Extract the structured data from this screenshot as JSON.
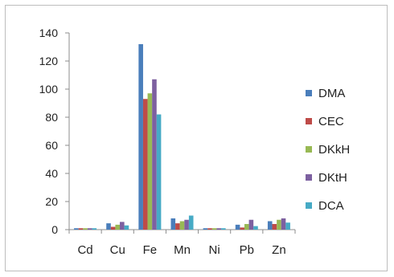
{
  "chart_data": {
    "type": "bar",
    "categories": [
      "Cd",
      "Cu",
      "Fe",
      "Mn",
      "Ni",
      "Pb",
      "Zn"
    ],
    "series": [
      {
        "name": "DMA",
        "color": "#4a7ebb",
        "values": [
          1,
          4.5,
          132,
          8,
          1,
          3.5,
          6
        ]
      },
      {
        "name": "CEC",
        "color": "#be4b48",
        "values": [
          1,
          2,
          93,
          4.5,
          1,
          1.5,
          4
        ]
      },
      {
        "name": "DKkH",
        "color": "#98b954",
        "values": [
          1,
          3.5,
          97,
          6,
          1,
          4,
          7
        ]
      },
      {
        "name": "DKtH",
        "color": "#7d60a0",
        "values": [
          1,
          5.5,
          107,
          7,
          1,
          7,
          8
        ]
      },
      {
        "name": "DCA",
        "color": "#46aac5",
        "values": [
          1,
          3,
          82,
          10,
          1,
          2.5,
          5
        ]
      }
    ],
    "yticks": [
      0,
      20,
      40,
      60,
      80,
      100,
      120,
      140
    ],
    "ylim": [
      0,
      140
    ],
    "legend_position": "right",
    "grid": false
  }
}
